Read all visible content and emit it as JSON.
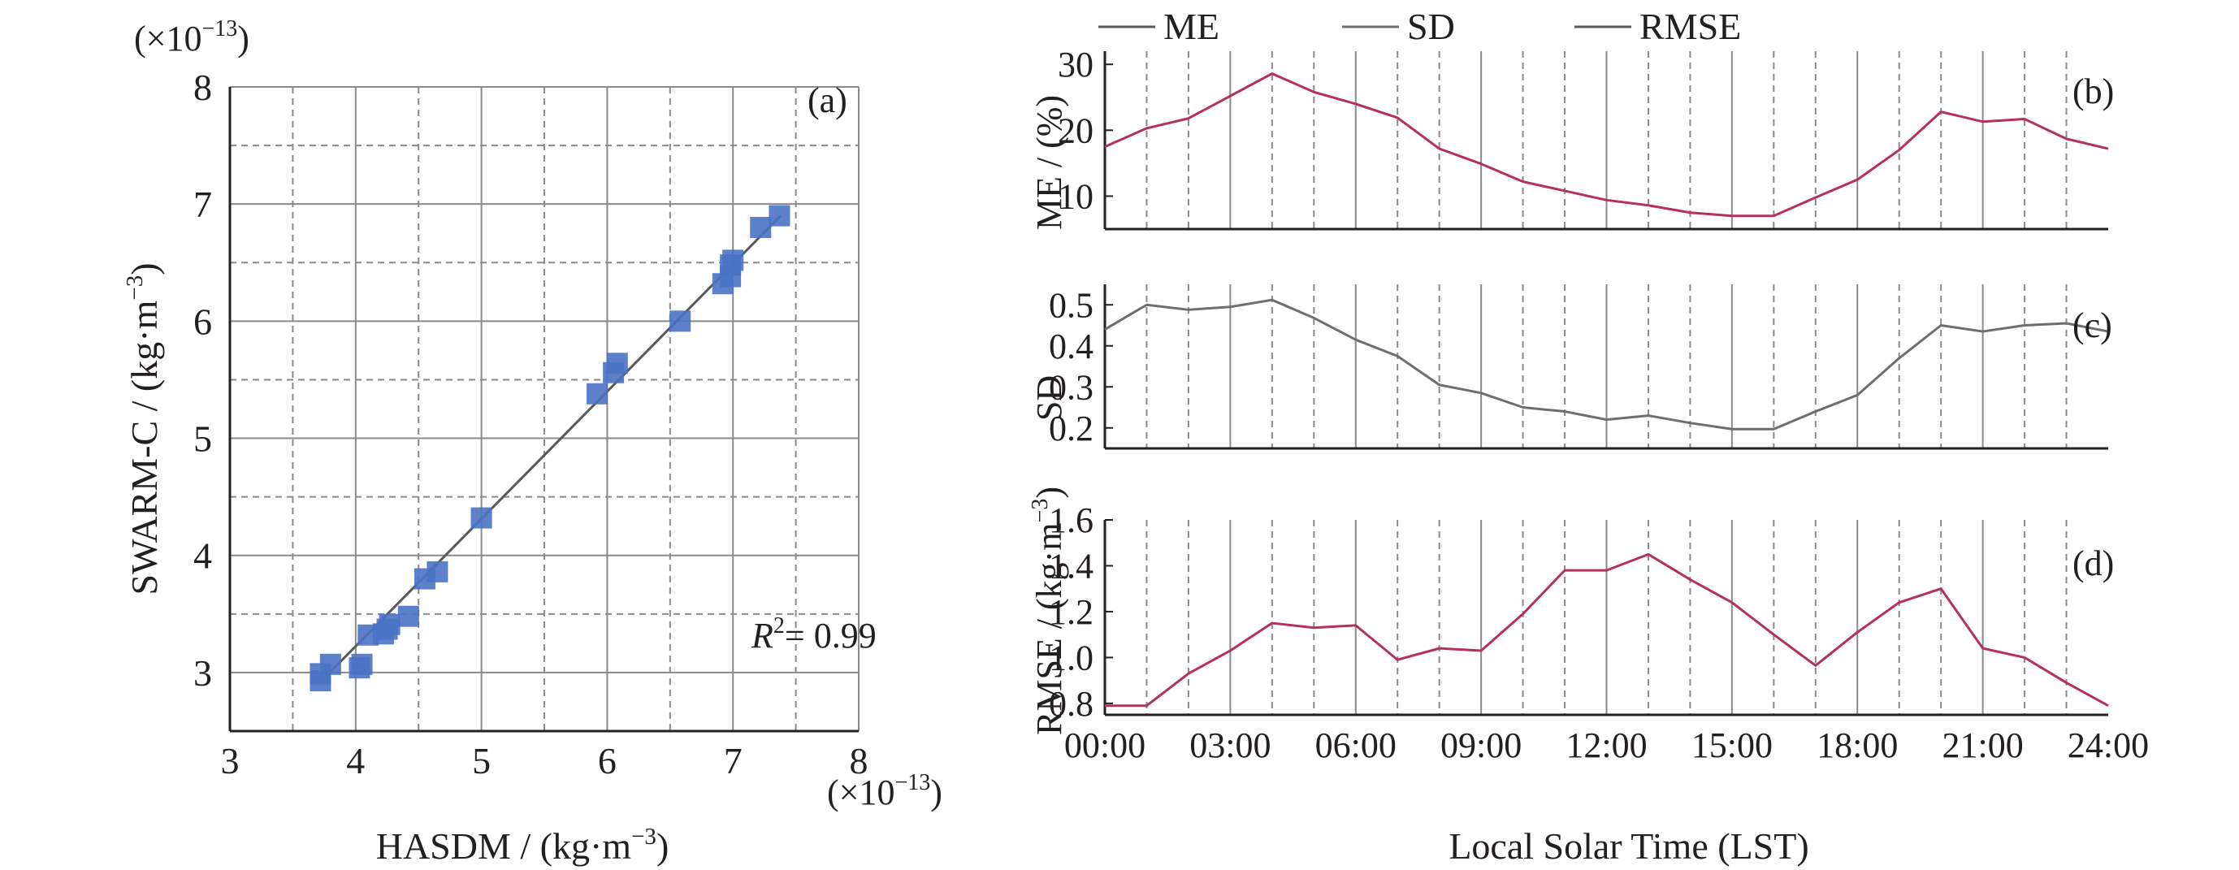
{
  "colors": {
    "axis": "#231f20",
    "grid": "#8a8a8a",
    "line_me": "#b5305a",
    "line_sd": "#6d6e71",
    "line_rmse": "#b5305a",
    "fit_line": "#58595b",
    "marker": "#4a72c4"
  },
  "chart_data": [
    {
      "type": "scatter",
      "panel": "(a)",
      "exp_label": "(×10",
      "exp_sup": "−13",
      "exp_close": ")",
      "xlabel": "HASDM / (kg·m",
      "xlabel_sup": "−3",
      "xlabel_close": ")",
      "ylabel": "SWARM-C / (kg·m",
      "ylabel_sup": "−3",
      "ylabel_close": ")",
      "xlim": [
        3,
        8
      ],
      "ylim": [
        2.5,
        8
      ],
      "xticks": [
        "3",
        "4",
        "5",
        "6",
        "7",
        "8"
      ],
      "yticks": [
        "3",
        "4",
        "5",
        "6",
        "7",
        "8"
      ],
      "grid": true,
      "r2_label": "R",
      "r2_sup": "2",
      "r2_value": "= 0.99",
      "fit": [
        [
          3.72,
          2.92
        ],
        [
          7.38,
          6.9
        ]
      ],
      "points": [
        [
          3.72,
          2.93
        ],
        [
          3.72,
          2.99
        ],
        [
          3.8,
          3.07
        ],
        [
          4.03,
          3.04
        ],
        [
          4.05,
          3.07
        ],
        [
          4.1,
          3.32
        ],
        [
          4.22,
          3.33
        ],
        [
          4.25,
          3.37
        ],
        [
          4.27,
          3.41
        ],
        [
          4.42,
          3.48
        ],
        [
          4.55,
          3.8
        ],
        [
          4.65,
          3.86
        ],
        [
          5.0,
          4.32
        ],
        [
          5.92,
          5.38
        ],
        [
          6.05,
          5.56
        ],
        [
          6.08,
          5.64
        ],
        [
          6.58,
          6.0
        ],
        [
          6.92,
          6.32
        ],
        [
          6.98,
          6.38
        ],
        [
          6.98,
          6.48
        ],
        [
          7.0,
          6.52
        ],
        [
          7.22,
          6.8
        ],
        [
          7.37,
          6.9
        ]
      ]
    },
    {
      "type": "line",
      "panel": "(b)",
      "ylabel": "ME / (%)",
      "ylim": [
        5,
        32
      ],
      "yticks": [
        10,
        20,
        30
      ],
      "x": [
        0,
        1,
        2,
        3,
        4,
        5,
        6,
        7,
        8,
        9,
        10,
        11,
        12,
        13,
        14,
        15,
        16,
        17,
        18,
        19,
        20,
        21,
        22,
        23,
        24
      ],
      "series": [
        {
          "name": "ME",
          "values": [
            17.5,
            20.3,
            21.8,
            25.2,
            28.6,
            25.8,
            24.0,
            21.9,
            17.2,
            14.9,
            12.2,
            10.8,
            9.4,
            8.6,
            7.5,
            7.0,
            7.0,
            9.8,
            12.5,
            17.0,
            22.8,
            21.3,
            21.7,
            18.7,
            17.2
          ]
        }
      ]
    },
    {
      "type": "line",
      "panel": "(c)",
      "ylabel": "SD",
      "ylim": [
        0.15,
        0.55
      ],
      "yticks": [
        "0.2",
        "0.3",
        "0.4",
        "0.5"
      ],
      "x": [
        0,
        1,
        2,
        3,
        4,
        5,
        6,
        7,
        8,
        9,
        10,
        11,
        12,
        13,
        14,
        15,
        16,
        17,
        18,
        19,
        20,
        21,
        22,
        23,
        24
      ],
      "series": [
        {
          "name": "SD",
          "values": [
            0.44,
            0.5,
            0.488,
            0.495,
            0.512,
            0.468,
            0.415,
            0.375,
            0.305,
            0.285,
            0.25,
            0.24,
            0.22,
            0.23,
            0.212,
            0.197,
            0.197,
            0.24,
            0.28,
            0.37,
            0.45,
            0.435,
            0.45,
            0.455,
            0.435
          ]
        }
      ]
    },
    {
      "type": "line",
      "panel": "(d)",
      "ylabel": "RMSE / (kg·m",
      "ylabel_sup": "−3",
      "ylabel_close": ")",
      "ylim": [
        0.75,
        1.6
      ],
      "yticks": [
        "0.8",
        "1.0",
        "1.2",
        "1.4",
        "1.6"
      ],
      "x": [
        0,
        1,
        2,
        3,
        4,
        5,
        6,
        7,
        8,
        9,
        10,
        11,
        12,
        13,
        14,
        15,
        16,
        17,
        18,
        19,
        20,
        21,
        22,
        23,
        24
      ],
      "xticks": [
        "00:00",
        "03:00",
        "06:00",
        "09:00",
        "12:00",
        "15:00",
        "18:00",
        "21:00",
        "24:00"
      ],
      "xlabel": "Local Solar Time (LST)",
      "series": [
        {
          "name": "RMSE",
          "values": [
            0.79,
            0.79,
            0.93,
            1.03,
            1.15,
            1.13,
            1.14,
            0.99,
            1.04,
            1.03,
            1.19,
            1.38,
            1.38,
            1.45,
            1.34,
            1.24,
            1.1,
            0.965,
            1.11,
            1.24,
            1.3,
            1.04,
            1.0,
            0.89,
            0.79
          ]
        }
      ]
    }
  ],
  "legend": {
    "placement": "top",
    "items": [
      {
        "label": "ME"
      },
      {
        "label": "SD"
      },
      {
        "label": "RMSE"
      }
    ]
  }
}
